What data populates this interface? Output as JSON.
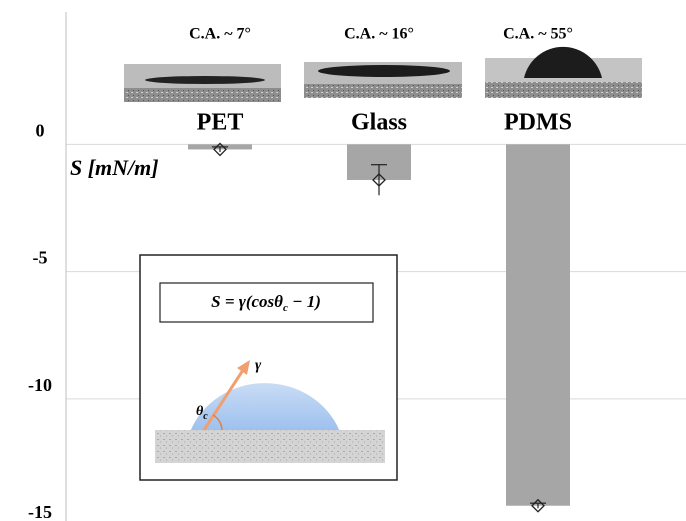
{
  "chart_data": {
    "type": "bar",
    "categories": [
      "PET",
      "Glass",
      "PDMS"
    ],
    "annotations": [
      "C.A. ~ 7°",
      "C.A. ~ 16°",
      "C.A. ~ 55°"
    ],
    "values": [
      -0.2,
      -1.4,
      -14.2
    ],
    "errors": [
      0.1,
      0.6,
      0.1
    ],
    "color": "#a6a6a6",
    "ylabel": "S [mN/m]",
    "ylim": [
      -14.8,
      5.2
    ],
    "yticks": [
      0,
      -5,
      -10,
      -15
    ],
    "grid": true,
    "inset": {
      "equation": [
        "S = γ(cosθ",
        "c",
        " − 1)"
      ],
      "gamma": "γ",
      "theta": [
        "θ",
        "c"
      ]
    }
  }
}
